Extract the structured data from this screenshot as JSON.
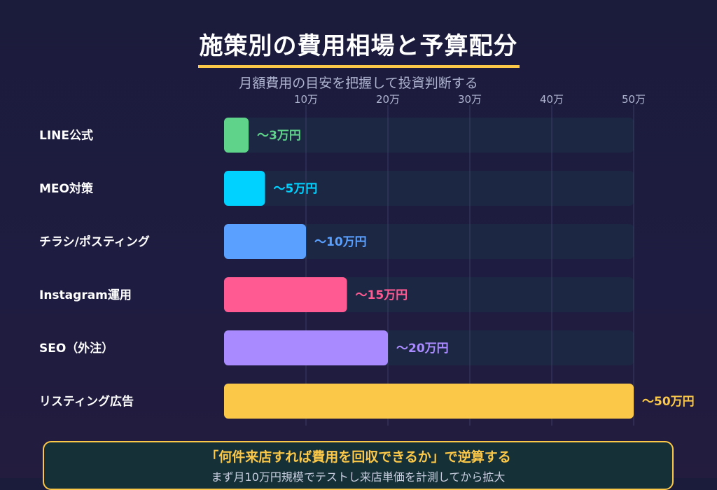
{
  "header": {
    "title": "施策別の費用相場と予算配分",
    "subtitle": "月額費用の目安を把握して投資判断する"
  },
  "chart_data": {
    "type": "bar",
    "orientation": "horizontal",
    "categories": [
      "LINE公式",
      "MEO対策",
      "チラシ/ポスティング",
      "Instagram運用",
      "SEO（外注）",
      "リスティング広告"
    ],
    "values": [
      3,
      5,
      10,
      15,
      20,
      50
    ],
    "value_labels": [
      "〜3万円",
      "〜5万円",
      "〜10万円",
      "〜15万円",
      "〜20万円",
      "〜50万円"
    ],
    "colors": [
      "#5fd38a",
      "#00d2ff",
      "#5aa0ff",
      "#ff5a92",
      "#a98bff",
      "#fcc847"
    ],
    "xlim": [
      0,
      50
    ],
    "xticks": [
      10,
      20,
      30,
      40,
      50
    ],
    "xtick_labels": [
      "10万",
      "20万",
      "30万",
      "40万",
      "50万"
    ],
    "grid": true,
    "track_color": "#1c2743"
  },
  "callout": {
    "main": "「何件来店すれば費用を回収できるか」で逆算する",
    "sub": "まず月10万円規模でテストし来店単価を計測してから拡大"
  }
}
